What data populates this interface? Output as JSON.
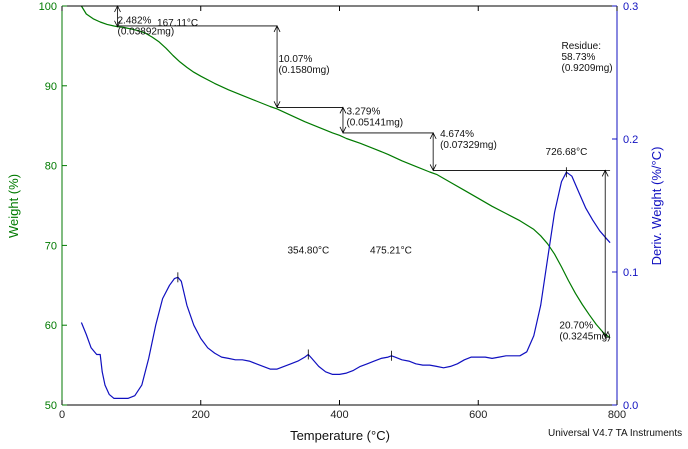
{
  "chart_data": {
    "type": "line",
    "xlabel": "Temperature (°C)",
    "ylabel_left": "Weight (%)",
    "ylabel_right": "Deriv. Weight (%/°C)",
    "instrument_label": "Universal V4.7 TA Instruments",
    "xlim": [
      0,
      800
    ],
    "ylim_left": [
      50,
      100
    ],
    "ylim_right": [
      0.0,
      0.3
    ],
    "x_ticks": [
      "0",
      "200",
      "400",
      "600",
      "800"
    ],
    "y_left_ticks": [
      "50",
      "60",
      "70",
      "80",
      "90",
      "100"
    ],
    "y_right_ticks": [
      "0.0",
      "0.1",
      "0.2",
      "0.3"
    ],
    "colors": {
      "weight": "#007a00",
      "deriv": "#1010c0",
      "left_axis": "#007a00",
      "right_axis": "#1010c0"
    },
    "series": [
      {
        "name": "Weight (%)",
        "axis": "left",
        "x": [
          28,
          35,
          45,
          55,
          65,
          75,
          80,
          90,
          100,
          110,
          120,
          130,
          140,
          150,
          160,
          170,
          180,
          190,
          200,
          220,
          240,
          260,
          280,
          300,
          310,
          330,
          350,
          370,
          390,
          400,
          410,
          430,
          450,
          470,
          490,
          510,
          530,
          540,
          560,
          580,
          600,
          620,
          640,
          660,
          680,
          690,
          700,
          710,
          720,
          730,
          740,
          750,
          760,
          770,
          780,
          790
        ],
        "y": [
          100.0,
          99.0,
          98.4,
          98.0,
          97.7,
          97.5,
          97.4,
          97.3,
          97.1,
          96.9,
          96.6,
          96.1,
          95.5,
          94.7,
          93.8,
          93.0,
          92.3,
          91.7,
          91.2,
          90.3,
          89.5,
          88.8,
          88.1,
          87.4,
          87.1,
          86.3,
          85.5,
          84.8,
          84.1,
          83.8,
          83.4,
          82.8,
          82.1,
          81.4,
          80.6,
          79.9,
          79.2,
          78.9,
          77.9,
          76.9,
          75.9,
          74.9,
          74.0,
          73.1,
          72.0,
          71.2,
          70.2,
          68.9,
          67.3,
          65.6,
          64.0,
          62.6,
          61.3,
          60.1,
          59.1,
          58.4
        ]
      },
      {
        "name": "Deriv. Weight (%/°C)",
        "axis": "right",
        "x": [
          28,
          35,
          42,
          50,
          55,
          58,
          62,
          68,
          75,
          85,
          95,
          105,
          115,
          125,
          135,
          145,
          155,
          162,
          167,
          172,
          180,
          190,
          200,
          210,
          220,
          230,
          240,
          250,
          260,
          270,
          280,
          290,
          300,
          310,
          320,
          330,
          340,
          350,
          355,
          360,
          370,
          380,
          390,
          400,
          410,
          420,
          430,
          440,
          450,
          460,
          470,
          475,
          480,
          490,
          500,
          510,
          520,
          530,
          540,
          550,
          560,
          570,
          580,
          590,
          600,
          610,
          620,
          630,
          640,
          650,
          660,
          670,
          680,
          690,
          700,
          710,
          720,
          727,
          735,
          745,
          755,
          765,
          775,
          785,
          790
        ],
        "y": [
          0.062,
          0.053,
          0.043,
          0.038,
          0.038,
          0.025,
          0.015,
          0.008,
          0.005,
          0.005,
          0.005,
          0.007,
          0.015,
          0.035,
          0.06,
          0.08,
          0.09,
          0.095,
          0.096,
          0.093,
          0.075,
          0.06,
          0.05,
          0.043,
          0.039,
          0.036,
          0.035,
          0.034,
          0.034,
          0.033,
          0.031,
          0.029,
          0.027,
          0.027,
          0.029,
          0.031,
          0.033,
          0.036,
          0.038,
          0.035,
          0.029,
          0.025,
          0.023,
          0.023,
          0.024,
          0.026,
          0.029,
          0.031,
          0.033,
          0.035,
          0.036,
          0.037,
          0.036,
          0.034,
          0.033,
          0.031,
          0.03,
          0.03,
          0.029,
          0.028,
          0.029,
          0.031,
          0.034,
          0.036,
          0.036,
          0.036,
          0.035,
          0.036,
          0.037,
          0.037,
          0.037,
          0.04,
          0.052,
          0.075,
          0.11,
          0.145,
          0.168,
          0.175,
          0.172,
          0.16,
          0.148,
          0.139,
          0.131,
          0.125,
          0.122
        ]
      }
    ],
    "annotations": [
      {
        "lines": [
          "2.482%",
          "(0.03892mg)"
        ],
        "x": 80,
        "y": 97.8
      },
      {
        "lines": [
          "10.07%",
          "(0.1580mg)"
        ],
        "x": 312,
        "y": 93.0
      },
      {
        "lines": [
          "3.279%",
          "(0.05141mg)"
        ],
        "x": 410,
        "y": 86.4
      },
      {
        "lines": [
          "4.674%",
          "(0.07329mg)"
        ],
        "x": 545,
        "y": 83.6
      },
      {
        "lines": [
          "Residue:",
          "58.73%",
          "(0.9209mg)"
        ],
        "x": 720,
        "y": 94.6
      },
      {
        "lines": [
          "167.11°C"
        ],
        "x": 137,
        "y": 97.5,
        "axis": "left"
      },
      {
        "lines": [
          "354.80°C"
        ],
        "x": 325,
        "y": 69.0,
        "axis": "left"
      },
      {
        "lines": [
          "475.21°C"
        ],
        "x": 444,
        "y": 69.0,
        "axis": "left"
      },
      {
        "lines": [
          "726.68°C"
        ],
        "x": 697,
        "y": 81.3,
        "axis": "left"
      },
      {
        "lines": [
          "20.70%",
          "(0.3245mg)"
        ],
        "x": 717,
        "y": 59.6
      }
    ]
  }
}
